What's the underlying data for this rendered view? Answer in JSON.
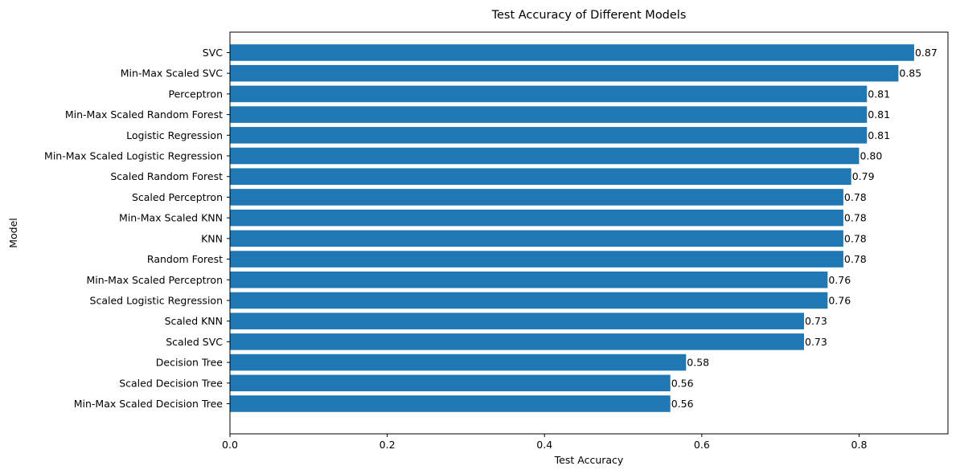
{
  "chart_data": {
    "type": "bar",
    "orientation": "horizontal",
    "title": "Test Accuracy of Different Models",
    "xlabel": "Test Accuracy",
    "ylabel": "Model",
    "xlim": [
      0,
      0.913
    ],
    "xticks": [
      0.0,
      0.2,
      0.4,
      0.6,
      0.8
    ],
    "xtick_labels": [
      "0.0",
      "0.2",
      "0.4",
      "0.6",
      "0.8"
    ],
    "grid": false,
    "bar_color": "#1f77b4",
    "categories": [
      "SVC",
      "Min-Max Scaled SVC",
      "Perceptron",
      "Min-Max Scaled Random Forest",
      "Logistic Regression",
      "Min-Max Scaled Logistic Regression",
      "Scaled Random Forest",
      "Scaled Perceptron",
      "Min-Max Scaled KNN",
      "KNN",
      "Random Forest",
      "Min-Max Scaled Perceptron",
      "Scaled Logistic Regression",
      "Scaled KNN",
      "Scaled SVC",
      "Decision Tree",
      "Scaled Decision Tree",
      "Min-Max Scaled Decision Tree"
    ],
    "values": [
      0.87,
      0.85,
      0.81,
      0.81,
      0.81,
      0.8,
      0.79,
      0.78,
      0.78,
      0.78,
      0.78,
      0.76,
      0.76,
      0.73,
      0.73,
      0.58,
      0.56,
      0.56
    ],
    "value_labels": [
      "0.87",
      "0.85",
      "0.81",
      "0.81",
      "0.81",
      "0.80",
      "0.79",
      "0.78",
      "0.78",
      "0.78",
      "0.78",
      "0.76",
      "0.76",
      "0.73",
      "0.73",
      "0.58",
      "0.56",
      "0.56"
    ]
  }
}
